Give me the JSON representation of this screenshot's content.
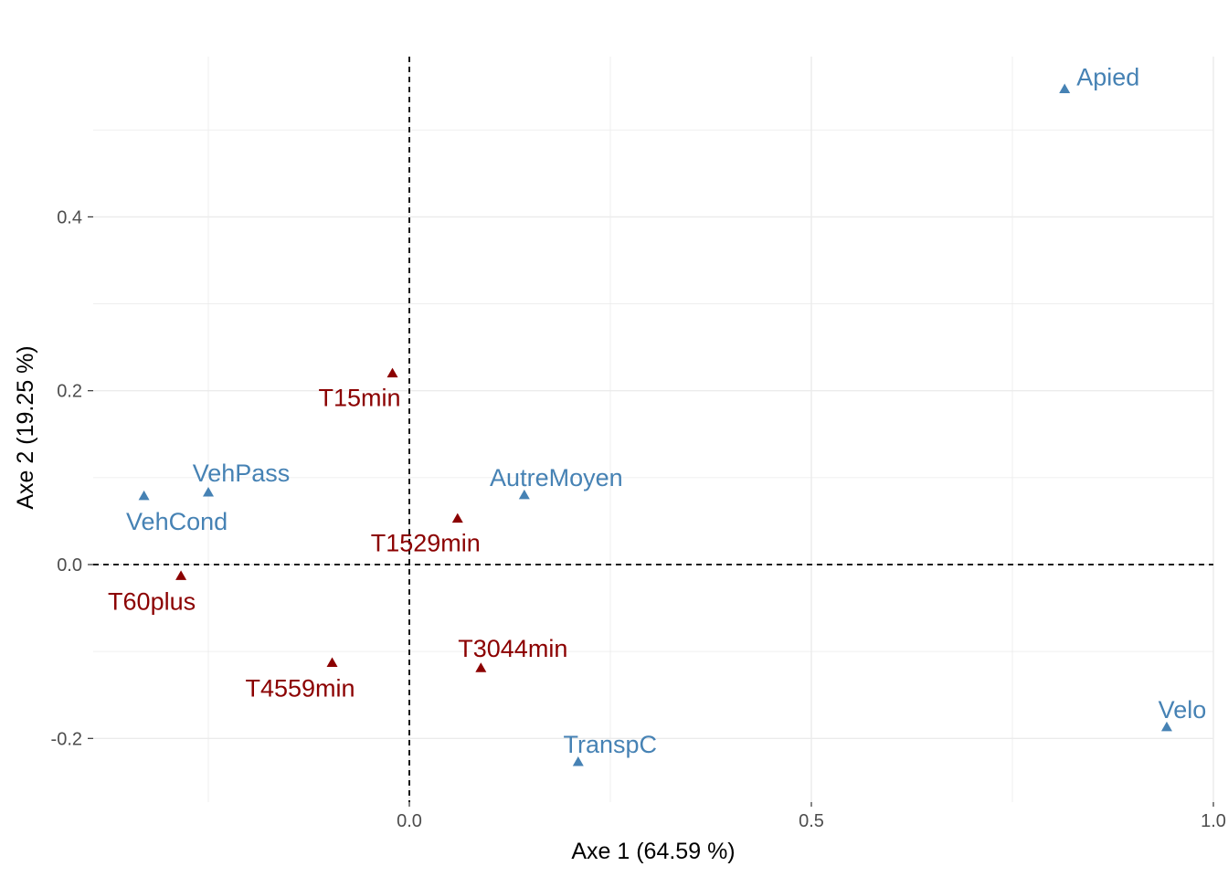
{
  "chart_data": {
    "type": "scatter",
    "title": "",
    "xlabel": "Axe 1 (64.59 %)",
    "ylabel": "Axe 2 (19.25 %)",
    "xlim": [
      -0.395,
      1.0
    ],
    "ylim": [
      -0.265,
      0.6
    ],
    "x_ticks": [
      {
        "value": 0.0,
        "label": "0.0"
      },
      {
        "value": 0.5,
        "label": "0.5"
      },
      {
        "value": 1.0,
        "label": "1.0"
      }
    ],
    "y_ticks": [
      {
        "value": -0.2,
        "label": "-0.2"
      },
      {
        "value": 0.0,
        "label": "0.0"
      },
      {
        "value": 0.2,
        "label": "0.2"
      },
      {
        "value": 0.4,
        "label": "0.4"
      }
    ],
    "grid": true,
    "reference_lines": {
      "x": 0,
      "y": 0,
      "style": "dashed"
    },
    "colors": {
      "mode": "#4682B4",
      "duree": "#8B0000",
      "grid": "#ebebeb",
      "reference": "#000000"
    },
    "series": [
      {
        "color": "#4682B4",
        "marker": "triangle",
        "points": [
          {
            "label": "Apied",
            "x": 0.815,
            "y": 0.547
          },
          {
            "label": "Velo",
            "x": 0.942,
            "y": -0.187
          },
          {
            "label": "TranspC",
            "x": 0.21,
            "y": -0.227
          },
          {
            "label": "AutreMoyen",
            "x": 0.143,
            "y": 0.08
          },
          {
            "label": "VehPass",
            "x": -0.25,
            "y": 0.083
          },
          {
            "label": "VehCond",
            "x": -0.33,
            "y": 0.079
          }
        ]
      },
      {
        "color": "#8B0000",
        "marker": "triangle",
        "points": [
          {
            "label": "T15min",
            "x": -0.021,
            "y": 0.22
          },
          {
            "label": "T1529min",
            "x": 0.06,
            "y": 0.053
          },
          {
            "label": "T60plus",
            "x": -0.284,
            "y": -0.013
          },
          {
            "label": "T4559min",
            "x": -0.096,
            "y": -0.113
          },
          {
            "label": "T3044min",
            "x": 0.089,
            "y": -0.119
          }
        ]
      }
    ]
  }
}
